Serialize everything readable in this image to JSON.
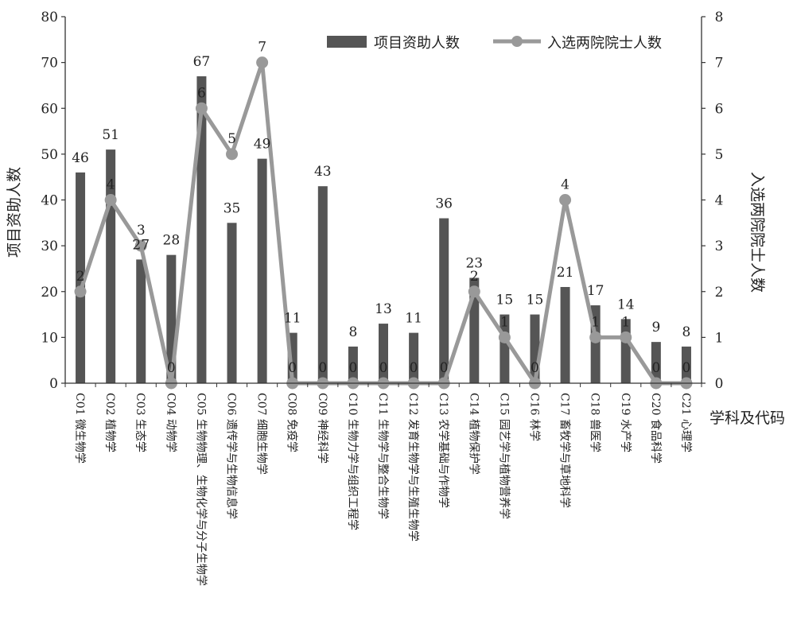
{
  "chart_data": {
    "type": "bar+line",
    "categories": [
      "C01 微生物学",
      "C02 植物学",
      "C03 生态学",
      "C04 动物学",
      "C05 生物物理、生物化学与分子生物学",
      "C06 遗传学与生物信息学",
      "C07 细胞生物学",
      "C08 免疫学",
      "C09 神经科学",
      "C10 生物力学与组织工程学",
      "C11 生物学与整合生物学",
      "C12 发育生物学与生殖生物学",
      "C13 农学基础与作物学",
      "C14 植物保护学",
      "C15 园艺学与植物营养学",
      "C16 林学",
      "C17 畜牧学与草地科学",
      "C18 兽医学",
      "C19 水产学",
      "C20 食品科学",
      "C21 心理学"
    ],
    "series": [
      {
        "name": "项目资助人数",
        "kind": "bar",
        "axis": "left",
        "color": "#555555",
        "values": [
          46,
          51,
          27,
          28,
          67,
          35,
          49,
          11,
          43,
          8,
          13,
          11,
          36,
          23,
          15,
          15,
          21,
          17,
          14,
          9,
          8
        ]
      },
      {
        "name": "入选两院院士人数",
        "kind": "line",
        "axis": "right",
        "color": "#999999",
        "values": [
          2,
          4,
          3,
          0,
          6,
          5,
          7,
          0,
          0,
          0,
          0,
          0,
          0,
          2,
          1,
          0,
          4,
          1,
          1,
          0,
          0
        ]
      }
    ],
    "ylabel": "项目资助人数",
    "y2label": "入选两院院士人数",
    "xlabel": "学科及代码",
    "ylim": [
      0,
      80
    ],
    "y2lim": [
      0,
      8
    ],
    "yticks": [
      "0",
      "10",
      "20",
      "30",
      "40",
      "50",
      "60",
      "70",
      "80"
    ],
    "y2ticks": [
      "0",
      "1",
      "2",
      "3",
      "4",
      "5",
      "6",
      "7",
      "8"
    ],
    "legend_position": "top-right",
    "grid": false
  }
}
